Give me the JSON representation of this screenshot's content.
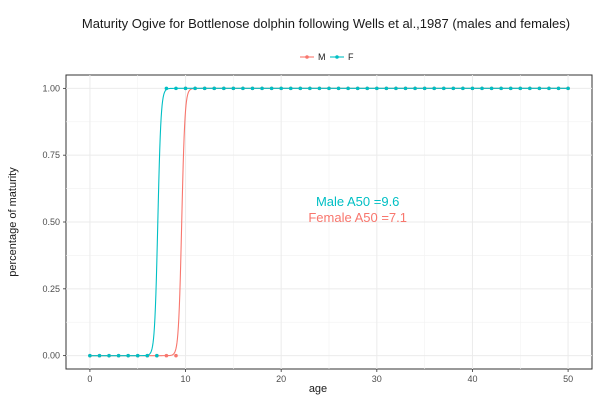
{
  "chart_data": {
    "type": "line",
    "title": "Maturity Ogive for Bottlenose dolphin following Wells et al.,1987 (males and females)",
    "xlabel": "age",
    "ylabel": "percentage of maturity",
    "xlim": [
      -2.5,
      52.5
    ],
    "ylim": [
      -0.05,
      1.05
    ],
    "x_ticks": [
      0,
      10,
      20,
      30,
      40,
      50
    ],
    "y_ticks": [
      0.0,
      0.25,
      0.5,
      0.75,
      1.0
    ],
    "y_tick_labels": [
      "0.00",
      "0.25",
      "0.50",
      "0.75",
      "1.00"
    ],
    "grid": true,
    "legend_position": "top",
    "series": [
      {
        "name": "M",
        "color": "#F8766D",
        "points": {
          "x": [
            0,
            1,
            2,
            3,
            4,
            5,
            6,
            7,
            8,
            9,
            10,
            11,
            12,
            13,
            14,
            15,
            16,
            17,
            18,
            19,
            20,
            21,
            22,
            23,
            24,
            25,
            26,
            27,
            28,
            29,
            30,
            31,
            32,
            33,
            34,
            35,
            36,
            37,
            38,
            39,
            40,
            41,
            42,
            43,
            44,
            45,
            46,
            47,
            48,
            49,
            50
          ],
          "y": [
            0,
            0,
            0,
            0,
            0,
            0,
            0,
            0,
            0,
            0,
            1,
            1,
            1,
            1,
            1,
            1,
            1,
            1,
            1,
            1,
            1,
            1,
            1,
            1,
            1,
            1,
            1,
            1,
            1,
            1,
            1,
            1,
            1,
            1,
            1,
            1,
            1,
            1,
            1,
            1,
            1,
            1,
            1,
            1,
            1,
            1,
            1,
            1,
            1,
            1,
            1
          ]
        },
        "curve": {
          "a50": 9.6,
          "steepness": 6.0
        }
      },
      {
        "name": "F",
        "color": "#00BFC4",
        "points": {
          "x": [
            0,
            1,
            2,
            3,
            4,
            5,
            6,
            7,
            8,
            9,
            10,
            11,
            12,
            13,
            14,
            15,
            16,
            17,
            18,
            19,
            20,
            21,
            22,
            23,
            24,
            25,
            26,
            27,
            28,
            29,
            30,
            31,
            32,
            33,
            34,
            35,
            36,
            37,
            38,
            39,
            40,
            41,
            42,
            43,
            44,
            45,
            46,
            47,
            48,
            49,
            50
          ],
          "y": [
            0,
            0,
            0,
            0,
            0,
            0,
            0,
            0,
            1,
            1,
            1,
            1,
            1,
            1,
            1,
            1,
            1,
            1,
            1,
            1,
            1,
            1,
            1,
            1,
            1,
            1,
            1,
            1,
            1,
            1,
            1,
            1,
            1,
            1,
            1,
            1,
            1,
            1,
            1,
            1,
            1,
            1,
            1,
            1,
            1,
            1,
            1,
            1,
            1,
            1,
            1
          ]
        },
        "curve": {
          "a50": 7.1,
          "steepness": 6.0
        }
      }
    ],
    "annotations": [
      {
        "text": "Male A50 =9.6",
        "x": 28,
        "y": 0.56,
        "color": "#00BFC4"
      },
      {
        "text": "Female A50 =7.1",
        "x": 28,
        "y": 0.5,
        "color": "#F8766D"
      }
    ]
  }
}
